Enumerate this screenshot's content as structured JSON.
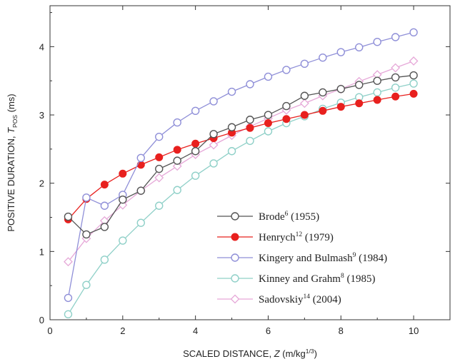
{
  "chart_data": {
    "type": "line",
    "xlabel": {
      "prefix": "SCALED DISTANCE, ",
      "var": "Z",
      "unit_pre": " (m/kg",
      "unit_sup": "1/3",
      "unit_post": ")"
    },
    "ylabel": {
      "prefix": "POSITIVE DURATION, ",
      "var": "T",
      "sub": "POS",
      "unit": " (ms)"
    },
    "xlim": [
      0,
      11
    ],
    "ylim": [
      0,
      4.6
    ],
    "xticks": [
      "0",
      "2",
      "4",
      "6",
      "8",
      "10"
    ],
    "xtick_values": [
      0,
      2,
      4,
      6,
      8,
      10
    ],
    "yticks": [
      "0",
      "1",
      "2",
      "3",
      "4"
    ],
    "ytick_values": [
      0,
      1,
      2,
      3,
      4
    ],
    "legend_position": "bottom-right",
    "x": [
      0.5,
      1.0,
      1.5,
      2.0,
      2.5,
      3.0,
      3.5,
      4.0,
      4.5,
      5.0,
      5.5,
      6.0,
      6.5,
      7.0,
      7.5,
      8.0,
      8.5,
      9.0,
      9.5,
      10.0
    ],
    "series": [
      {
        "name": "Brode",
        "sup": "6",
        "year": " (1955)",
        "color": "#555555",
        "marker": "circle-open",
        "values": [
          1.51,
          1.25,
          1.36,
          1.76,
          1.89,
          2.21,
          2.33,
          2.47,
          2.72,
          2.82,
          2.93,
          3.0,
          3.13,
          3.28,
          3.33,
          3.38,
          3.44,
          3.5,
          3.55,
          3.58
        ]
      },
      {
        "name": "Henrych",
        "sup": "12",
        "year": " (1979)",
        "color": "#e8201e",
        "marker": "circle-filled",
        "values": [
          1.47,
          1.77,
          1.98,
          2.14,
          2.27,
          2.38,
          2.49,
          2.58,
          2.66,
          2.74,
          2.81,
          2.88,
          2.94,
          3.0,
          3.06,
          3.12,
          3.17,
          3.22,
          3.27,
          3.31
        ]
      },
      {
        "name": "Kingery and Bulmash",
        "sup": "9",
        "year": " (1984)",
        "color": "#8f8fd8",
        "marker": "circle-open",
        "values": [
          0.32,
          1.79,
          1.67,
          1.83,
          2.37,
          2.68,
          2.89,
          3.06,
          3.2,
          3.34,
          3.45,
          3.56,
          3.66,
          3.75,
          3.84,
          3.92,
          3.99,
          4.07,
          4.14,
          4.21
        ]
      },
      {
        "name": "Kinney and Grahm",
        "sup": "8",
        "year": " (1985)",
        "color": "#8fd0c8",
        "marker": "circle-open",
        "values": [
          0.08,
          0.51,
          0.88,
          1.16,
          1.42,
          1.67,
          1.9,
          2.11,
          2.29,
          2.47,
          2.62,
          2.76,
          2.88,
          2.98,
          3.09,
          3.18,
          3.26,
          3.33,
          3.4,
          3.46
        ]
      },
      {
        "name": "Sadovskiy",
        "sup": "14",
        "year": " (2004)",
        "color": "#e6a8d8",
        "marker": "diamond-open",
        "values": [
          0.85,
          1.19,
          1.45,
          1.68,
          1.89,
          2.08,
          2.25,
          2.42,
          2.56,
          2.7,
          2.83,
          2.95,
          3.07,
          3.17,
          3.28,
          3.38,
          3.49,
          3.59,
          3.69,
          3.79
        ]
      }
    ]
  }
}
